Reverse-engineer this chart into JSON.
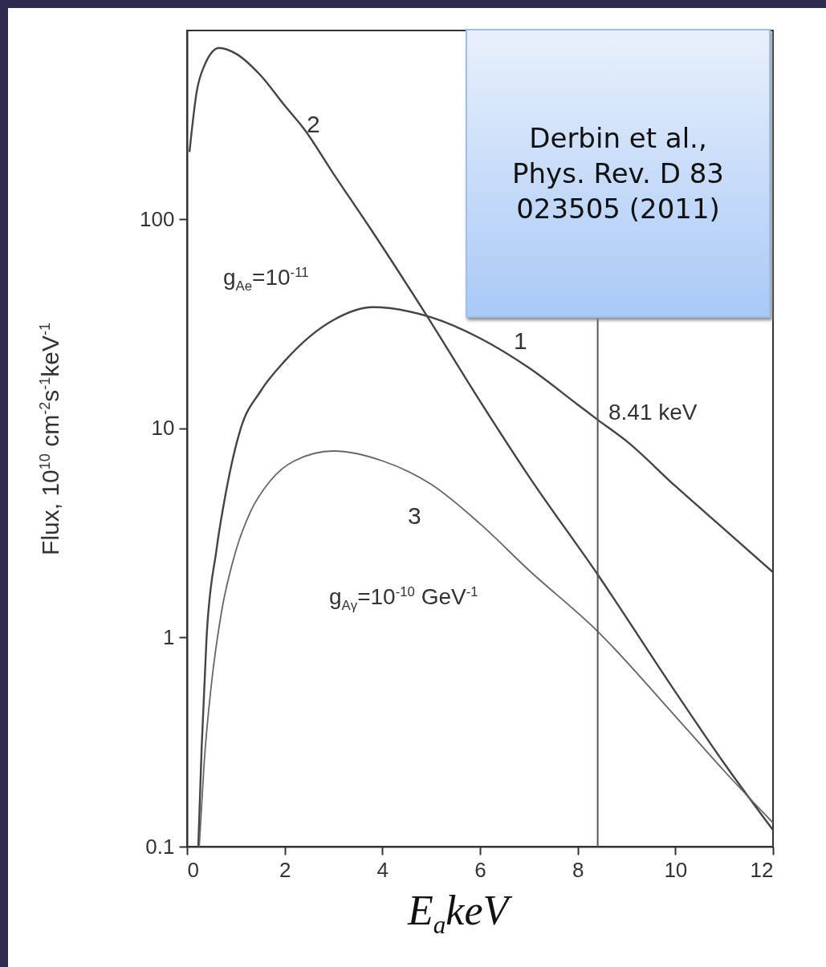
{
  "chart_data": {
    "type": "line",
    "xlabel": "E$_{a}$keV",
    "ylabel": "Flux, 10$^{10}$ cm$^{-2}$s$^{-1}$keV$^{-1}$",
    "log": "y",
    "grid": false,
    "xlim": [
      0,
      12
    ],
    "xticks": [
      0,
      2,
      4,
      6,
      8,
      10,
      12
    ],
    "ylim": [
      0.1,
      800
    ],
    "yticks": [
      0.1,
      1,
      10,
      100
    ],
    "series": [
      {
        "name": "1",
        "color": "#444444",
        "x": [
          0.23,
          0.3,
          0.4,
          0.6,
          0.8,
          1.1,
          1.5,
          2,
          3,
          3.8,
          5,
          6,
          7,
          8,
          8.41,
          9,
          10,
          11,
          12
        ],
        "values": [
          0.1,
          0.3,
          1,
          2.6,
          5,
          10,
          15,
          21,
          33,
          38,
          34,
          27,
          19.5,
          13,
          11,
          8.7,
          5.3,
          3.3,
          2.05
        ]
      },
      {
        "name": "2",
        "color": "#444444",
        "x": [
          0.05,
          0.2,
          0.35,
          0.66,
          1,
          1.5,
          2,
          2.4,
          3,
          3.76,
          4.93,
          6,
          7,
          8.41,
          10,
          11,
          12
        ],
        "values": [
          210,
          410,
          540,
          660,
          620,
          490,
          350,
          270,
          165,
          90,
          34,
          13.5,
          5.9,
          2,
          0.55,
          0.25,
          0.12
        ]
      },
      {
        "name": "3",
        "color": "#666666",
        "x": [
          0.25,
          0.35,
          0.5,
          0.7,
          1,
          1.3,
          1.7,
          2.2,
          3,
          4,
          5,
          6,
          7,
          8.41,
          10,
          11,
          12
        ],
        "values": [
          0.1,
          0.25,
          0.6,
          1.3,
          2.6,
          4,
          5.6,
          7,
          7.8,
          7,
          5.4,
          3.5,
          2.1,
          1.07,
          0.42,
          0.23,
          0.13
        ]
      }
    ],
    "ref_lines": [
      {
        "axis": "x",
        "value": 8.41,
        "label": "8.41 keV",
        "color": "#555555"
      }
    ],
    "annotations": [
      "g$_{Ae}$=10$^{-11}$",
      "g$_{Aγ}$=10$^{-10}$ GeV$^{-1}$",
      "Derbin et al., Phys. Rev. D 83 023505 (2011)"
    ]
  }
}
